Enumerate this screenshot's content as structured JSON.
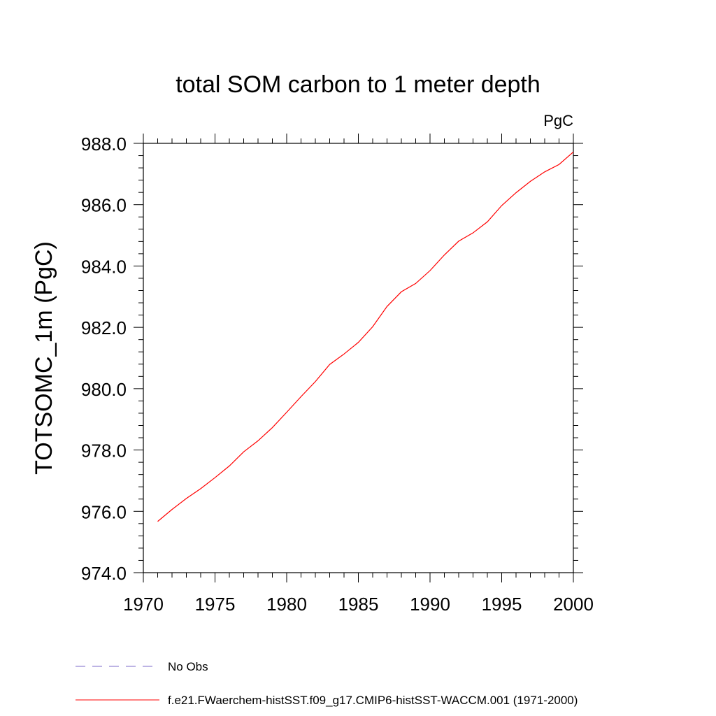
{
  "chart_data": {
    "type": "line",
    "title": "total SOM carbon to 1 meter depth",
    "units_label": "PgC",
    "xlabel": "",
    "ylabel": "TOTSOMC_1m  (PgC)",
    "xlim": [
      1970,
      2000
    ],
    "ylim": [
      974.0,
      988.0
    ],
    "x_ticks": [
      1970,
      1975,
      1980,
      1985,
      1990,
      1995,
      2000
    ],
    "y_ticks": [
      "974.0",
      "976.0",
      "978.0",
      "980.0",
      "982.0",
      "984.0",
      "986.0",
      "988.0"
    ],
    "grid": false,
    "legend_position": "bottom",
    "legend": [
      {
        "label": "No Obs",
        "color": "#7b68c8",
        "style": "dashed"
      },
      {
        "label": "f.e21.FWaerchem-histSST.f09_g17.CMIP6-histSST-WACCM.001 (1971-2000)",
        "color": "#ff0000",
        "style": "solid"
      }
    ],
    "series": [
      {
        "name": "f.e21.FWaerchem-histSST.f09_g17.CMIP6-histSST-WACCM.001 (1971-2000)",
        "color": "#ff0000",
        "x": [
          1971,
          1972,
          1973,
          1974,
          1975,
          1976,
          1977,
          1978,
          1979,
          1980,
          1981,
          1982,
          1983,
          1984,
          1985,
          1986,
          1987,
          1988,
          1989,
          1990,
          1991,
          1992,
          1993,
          1994,
          1995,
          1996,
          1997,
          1998,
          1999,
          2000
        ],
        "y": [
          975.67,
          976.06,
          976.42,
          976.74,
          977.1,
          977.48,
          977.94,
          978.3,
          978.73,
          979.23,
          979.74,
          980.23,
          980.79,
          981.13,
          981.51,
          982.02,
          982.68,
          983.16,
          983.43,
          983.85,
          984.36,
          984.81,
          985.08,
          985.44,
          985.97,
          986.39,
          986.76,
          987.07,
          987.31,
          987.72
        ]
      }
    ]
  }
}
